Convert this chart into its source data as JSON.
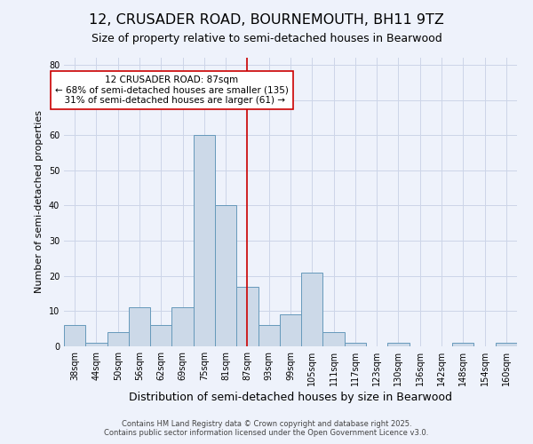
{
  "title1": "12, CRUSADER ROAD, BOURNEMOUTH, BH11 9TZ",
  "title2": "Size of property relative to semi-detached houses in Bearwood",
  "xlabel": "Distribution of semi-detached houses by size in Bearwood",
  "ylabel": "Number of semi-detached properties",
  "footnote1": "Contains HM Land Registry data © Crown copyright and database right 2025.",
  "footnote2": "Contains public sector information licensed under the Open Government Licence v3.0.",
  "categories": [
    "38sqm",
    "44sqm",
    "50sqm",
    "56sqm",
    "62sqm",
    "69sqm",
    "75sqm",
    "81sqm",
    "87sqm",
    "93sqm",
    "99sqm",
    "105sqm",
    "111sqm",
    "117sqm",
    "123sqm",
    "130sqm",
    "136sqm",
    "142sqm",
    "148sqm",
    "154sqm",
    "160sqm"
  ],
  "values": [
    6,
    1,
    4,
    11,
    6,
    11,
    60,
    40,
    17,
    6,
    9,
    21,
    4,
    1,
    0,
    1,
    0,
    0,
    1,
    0,
    1
  ],
  "bar_color": "#ccd9e8",
  "bar_edge_color": "#6699bb",
  "bar_linewidth": 0.7,
  "subject_idx": 8,
  "subject_label": "12 CRUSADER ROAD: 87sqm",
  "pct_smaller": 68,
  "n_smaller": 135,
  "pct_larger": 31,
  "n_larger": 61,
  "vline_color": "#cc0000",
  "vline_linewidth": 1.2,
  "annotation_box_color": "#ffffff",
  "annotation_box_edge": "#cc0000",
  "ylim": [
    0,
    82
  ],
  "yticks": [
    0,
    10,
    20,
    30,
    40,
    50,
    60,
    70,
    80
  ],
  "grid_color": "#ccd5e8",
  "bg_color": "#eef2fb",
  "title_fontsize": 11.5,
  "subtitle_fontsize": 9,
  "xlabel_fontsize": 9,
  "ylabel_fontsize": 8,
  "tick_fontsize": 7,
  "annot_fontsize": 7.5,
  "footnote_fontsize": 6
}
